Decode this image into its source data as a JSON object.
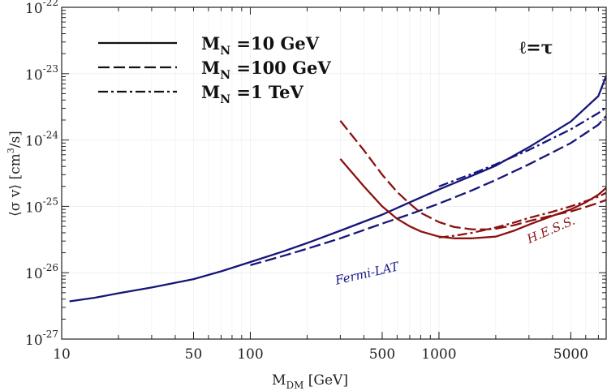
{
  "chart_data": {
    "type": "line",
    "xscale": "log",
    "yscale": "log",
    "xlim": [
      10,
      7700
    ],
    "ylim": [
      1e-27,
      1e-22
    ],
    "x_ticks": [
      {
        "value": 10,
        "label": "10"
      },
      {
        "value": 50,
        "label": "50"
      },
      {
        "value": 100,
        "label": "100"
      },
      {
        "value": 500,
        "label": "500"
      },
      {
        "value": 1000,
        "label": "1000"
      },
      {
        "value": 5000,
        "label": "5000"
      }
    ],
    "y_ticks": [
      {
        "value": 1e-27,
        "base": "10",
        "exp": "-27"
      },
      {
        "value": 1e-26,
        "base": "10",
        "exp": "-26"
      },
      {
        "value": 1e-25,
        "base": "10",
        "exp": "-25"
      },
      {
        "value": 1e-24,
        "base": "10",
        "exp": "-24"
      },
      {
        "value": 1e-23,
        "base": "10",
        "exp": "-23"
      },
      {
        "value": 1e-22,
        "base": "10",
        "exp": "-22"
      }
    ],
    "xlabel": {
      "main": "M",
      "sub": "DM",
      "rest": " [GeV]"
    },
    "ylabel": {
      "main": "⟨σ v⟩ [cm",
      "sup": "3",
      "rest": "/s]"
    },
    "grid": true,
    "panel_label": "ℓ=τ",
    "legend": {
      "placement": "top-left",
      "entries": [
        {
          "main": "M",
          "sub": "N",
          "rest": " =10 GeV",
          "dash": "solid"
        },
        {
          "main": "M",
          "sub": "N",
          "rest": " =100 GeV",
          "dash": "dashed"
        },
        {
          "main": "M",
          "sub": "N",
          "rest": " =1 TeV",
          "dash": "dashdot"
        }
      ]
    },
    "annotations": [
      {
        "text": "Fermi-LAT",
        "color": "#1a1a8c",
        "x": 420,
        "y": 8.5e-27,
        "rotate": -13
      },
      {
        "text": "H.E.S.S.",
        "color": "#8b1a1a",
        "x": 4000,
        "y": 3.9e-26,
        "rotate": -23
      }
    ],
    "series": [
      {
        "experiment": "Fermi-LAT",
        "M_N": "10 GeV",
        "dash": "solid",
        "color": "#15157a",
        "x": [
          11,
          15,
          20,
          30,
          50,
          70,
          100,
          150,
          200,
          300,
          500,
          700,
          1000,
          1500,
          2000,
          3000,
          5000,
          7000,
          7700
        ],
        "y": [
          3.7e-27,
          4.2e-27,
          4.9e-27,
          6e-27,
          8e-27,
          1.05e-26,
          1.45e-26,
          2.1e-26,
          2.8e-26,
          4.3e-26,
          7.5e-26,
          1.15e-25,
          1.8e-25,
          2.9e-25,
          4.1e-25,
          7.8e-25,
          1.9e-24,
          4.6e-24,
          9.3e-24
        ]
      },
      {
        "experiment": "Fermi-LAT",
        "M_N": "100 GeV",
        "dash": "dashed",
        "color": "#15157a",
        "x": [
          100,
          150,
          200,
          300,
          500,
          700,
          1000,
          1500,
          2000,
          3000,
          5000,
          7000,
          7700
        ],
        "y": [
          1.3e-26,
          1.8e-26,
          2.3e-26,
          3.3e-26,
          5.5e-26,
          7.6e-26,
          1.1e-25,
          1.75e-25,
          2.5e-25,
          4.3e-25,
          9e-25,
          1.7e-24,
          2.3e-24
        ]
      },
      {
        "experiment": "Fermi-LAT",
        "M_N": "1 TeV",
        "dash": "dashdot",
        "color": "#15157a",
        "x": [
          1000,
          1500,
          2000,
          3000,
          5000,
          7000,
          7700
        ],
        "y": [
          2e-25,
          3.1e-25,
          4.3e-25,
          7.1e-25,
          1.45e-24,
          2.55e-24,
          3.1e-24
        ]
      },
      {
        "experiment": "H.E.S.S.",
        "M_N": "10 GeV",
        "dash": "solid",
        "color": "#8b1111",
        "x": [
          300,
          400,
          500,
          600,
          700,
          800,
          1000,
          1200,
          1500,
          2000,
          2500,
          3000,
          4000,
          5000,
          6000,
          7000,
          7700
        ],
        "y": [
          5.2e-25,
          2e-25,
          1e-25,
          6.5e-26,
          5e-26,
          4.2e-26,
          3.5e-26,
          3.3e-26,
          3.3e-26,
          3.5e-26,
          4.3e-26,
          5.3e-26,
          7.2e-26,
          9e-26,
          1.15e-25,
          1.5e-25,
          1.9e-25
        ]
      },
      {
        "experiment": "H.E.S.S.",
        "M_N": "100 GeV",
        "dash": "dashed",
        "color": "#8b1111",
        "x": [
          300,
          400,
          500,
          600,
          700,
          800,
          1000,
          1200,
          1500,
          1800,
          2000,
          2500,
          3000,
          4000,
          5000,
          6000,
          7000,
          7700
        ],
        "y": [
          1.95e-24,
          7e-25,
          3e-25,
          1.65e-25,
          1.1e-25,
          8e-26,
          5.8e-26,
          4.9e-26,
          4.5e-26,
          4.5e-26,
          4.6e-26,
          5.2e-26,
          6e-26,
          7.3e-26,
          8.4e-26,
          9.8e-26,
          1.13e-25,
          1.25e-25
        ]
      },
      {
        "experiment": "H.E.S.S.",
        "M_N": "1 TeV",
        "dash": "dashdot",
        "color": "#8b1111",
        "x": [
          1000,
          1200,
          1500,
          2000,
          2500,
          3000,
          4000,
          5000,
          6000,
          7000,
          7700
        ],
        "y": [
          3.4e-26,
          3.6e-26,
          4e-26,
          4.8e-26,
          5.7e-26,
          6.7e-26,
          8.3e-26,
          1e-25,
          1.2e-25,
          1.4e-25,
          1.6e-25
        ]
      }
    ]
  }
}
